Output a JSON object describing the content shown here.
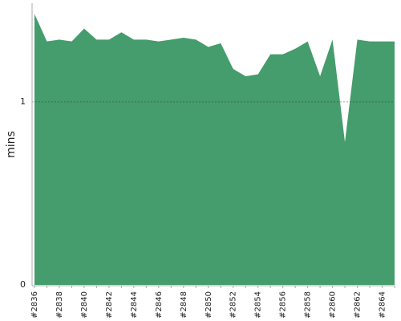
{
  "chart_data": {
    "type": "area",
    "y_label": "mins",
    "categories": [
      "#2836",
      null,
      "#2838",
      null,
      "#2840",
      null,
      "#2842",
      null,
      "#2844",
      null,
      "#2846",
      null,
      "#2848",
      null,
      "#2850",
      null,
      "#2852",
      null,
      "#2854",
      null,
      "#2856",
      null,
      "#2858",
      null,
      "#2860",
      null,
      "#2862",
      null,
      "#2864",
      null
    ],
    "values": [
      1.48,
      1.33,
      1.34,
      1.33,
      1.4,
      1.34,
      1.34,
      1.38,
      1.34,
      1.34,
      1.33,
      1.34,
      1.35,
      1.34,
      1.3,
      1.32,
      1.18,
      1.14,
      1.15,
      1.26,
      1.26,
      1.29,
      1.33,
      1.14,
      1.34,
      0.78,
      1.34,
      1.33,
      1.33,
      1.33
    ],
    "color": "#459c6c",
    "ylim": [
      0,
      1.53
    ],
    "yticks": [
      0,
      1
    ],
    "grid": true
  }
}
